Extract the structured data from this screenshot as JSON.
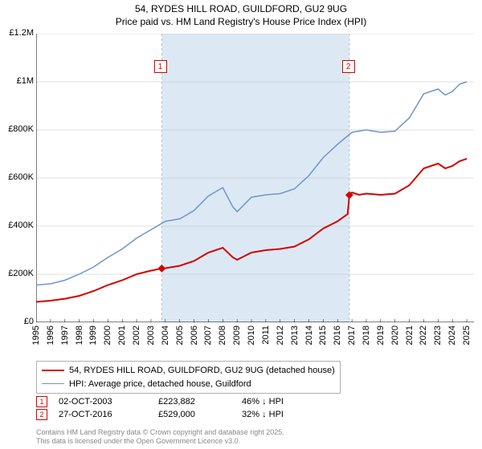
{
  "title_line1": "54, RYDES HILL ROAD, GUILDFORD, GU2 9UG",
  "title_line2": "Price paid vs. HM Land Registry's House Price Index (HPI)",
  "chart": {
    "type": "line",
    "background_color": "#ffffff",
    "band_color": "#dce9f4",
    "grid_color": "#c0c0c0",
    "xlim": [
      1995,
      2025.5
    ],
    "ylim": [
      0,
      1200000
    ],
    "ytick_step": 200000,
    "ytick_labels": [
      "£0",
      "£200K",
      "£400K",
      "£600K",
      "£800K",
      "£1M",
      "£1.2M"
    ],
    "xtick_step": 1,
    "xtick_labels": [
      "1995",
      "1996",
      "1997",
      "1998",
      "1999",
      "2000",
      "2001",
      "2002",
      "2003",
      "2004",
      "2005",
      "2006",
      "2007",
      "2008",
      "2009",
      "2010",
      "2011",
      "2012",
      "2013",
      "2014",
      "2015",
      "2016",
      "2017",
      "2018",
      "2019",
      "2020",
      "2021",
      "2022",
      "2023",
      "2024",
      "2025"
    ],
    "band_x": [
      2003.75,
      2016.82
    ],
    "series": [
      {
        "name": "price_paid",
        "color": "#d50000",
        "line_width": 2,
        "data": [
          [
            1995,
            85000
          ],
          [
            1996,
            90000
          ],
          [
            1997,
            98000
          ],
          [
            1998,
            110000
          ],
          [
            1999,
            130000
          ],
          [
            2000,
            155000
          ],
          [
            2001,
            175000
          ],
          [
            2002,
            200000
          ],
          [
            2003,
            215000
          ],
          [
            2003.75,
            223882
          ],
          [
            2004,
            225000
          ],
          [
            2005,
            235000
          ],
          [
            2006,
            255000
          ],
          [
            2007,
            290000
          ],
          [
            2008,
            310000
          ],
          [
            2008.7,
            270000
          ],
          [
            2009,
            260000
          ],
          [
            2010,
            290000
          ],
          [
            2011,
            300000
          ],
          [
            2012,
            305000
          ],
          [
            2013,
            315000
          ],
          [
            2014,
            345000
          ],
          [
            2015,
            390000
          ],
          [
            2016,
            420000
          ],
          [
            2016.7,
            450000
          ],
          [
            2016.82,
            529000
          ],
          [
            2017,
            540000
          ],
          [
            2017.5,
            530000
          ],
          [
            2018,
            535000
          ],
          [
            2019,
            530000
          ],
          [
            2020,
            535000
          ],
          [
            2021,
            570000
          ],
          [
            2022,
            640000
          ],
          [
            2023,
            660000
          ],
          [
            2023.5,
            640000
          ],
          [
            2024,
            650000
          ],
          [
            2024.5,
            670000
          ],
          [
            2025,
            680000
          ]
        ]
      },
      {
        "name": "hpi",
        "color": "#6f95c9",
        "line_width": 1.5,
        "data": [
          [
            1995,
            155000
          ],
          [
            1996,
            160000
          ],
          [
            1997,
            175000
          ],
          [
            1998,
            200000
          ],
          [
            1999,
            230000
          ],
          [
            2000,
            270000
          ],
          [
            2001,
            305000
          ],
          [
            2002,
            350000
          ],
          [
            2003,
            385000
          ],
          [
            2004,
            420000
          ],
          [
            2005,
            430000
          ],
          [
            2006,
            465000
          ],
          [
            2007,
            525000
          ],
          [
            2008,
            560000
          ],
          [
            2008.7,
            480000
          ],
          [
            2009,
            460000
          ],
          [
            2010,
            520000
          ],
          [
            2011,
            530000
          ],
          [
            2012,
            535000
          ],
          [
            2013,
            555000
          ],
          [
            2014,
            610000
          ],
          [
            2015,
            685000
          ],
          [
            2016,
            740000
          ],
          [
            2017,
            790000
          ],
          [
            2018,
            800000
          ],
          [
            2019,
            790000
          ],
          [
            2020,
            795000
          ],
          [
            2021,
            850000
          ],
          [
            2022,
            950000
          ],
          [
            2023,
            970000
          ],
          [
            2023.5,
            945000
          ],
          [
            2024,
            960000
          ],
          [
            2024.5,
            990000
          ],
          [
            2025,
            1000000
          ]
        ]
      }
    ],
    "markers": [
      {
        "label": "1",
        "x": 2003.75,
        "y": 223882,
        "color": "#d50000",
        "box_x": 2003.2,
        "box_y": 1090000
      },
      {
        "label": "2",
        "x": 2016.82,
        "y": 529000,
        "color": "#d50000",
        "box_x": 2016.3,
        "box_y": 1090000
      }
    ]
  },
  "legend": {
    "items": [
      {
        "color": "#d50000",
        "width": 2,
        "label": "54, RYDES HILL ROAD, GUILDFORD, GU2 9UG (detached house)"
      },
      {
        "color": "#6f95c9",
        "width": 1.5,
        "label": "HPI: Average price, detached house, Guildford"
      }
    ]
  },
  "datapoints": [
    {
      "marker": "1",
      "color": "#d50000",
      "date": "02-OCT-2003",
      "price": "£223,882",
      "pct": "46% ↓ HPI"
    },
    {
      "marker": "2",
      "color": "#d50000",
      "date": "27-OCT-2016",
      "price": "£529,000",
      "pct": "32% ↓ HPI"
    }
  ],
  "footer_line1": "Contains HM Land Registry data © Crown copyright and database right 2025.",
  "footer_line2": "This data is licensed under the Open Government Licence v3.0."
}
